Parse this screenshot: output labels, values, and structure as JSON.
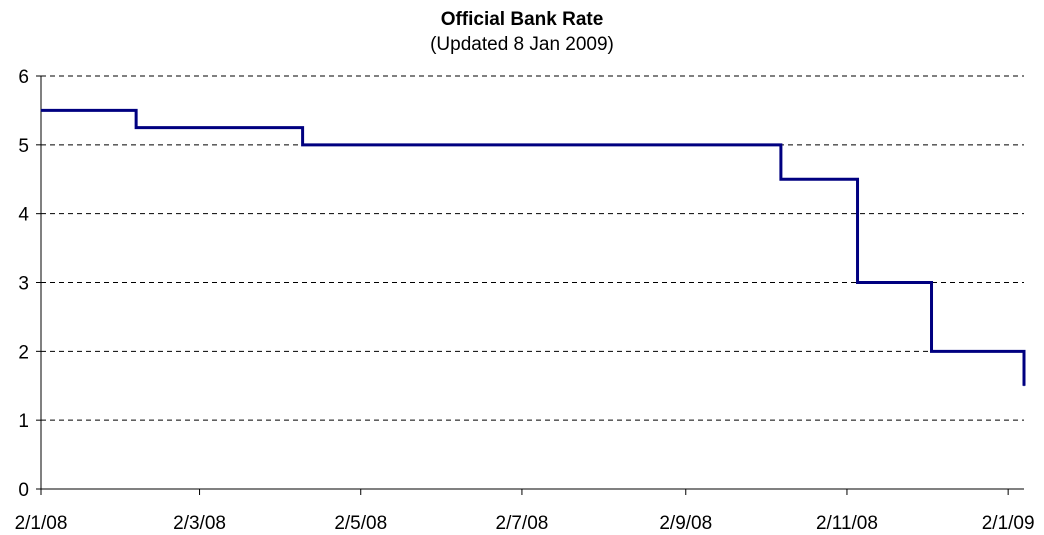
{
  "chart_data": {
    "type": "line",
    "title": "Official Bank Rate",
    "subtitle": "(Updated 8 Jan 2009)",
    "xlabel": "",
    "ylabel": "",
    "ylim": [
      0,
      6
    ],
    "yticks": [
      "0",
      "1",
      "2",
      "3",
      "4",
      "5",
      "6"
    ],
    "xlim": [
      "2008-01-02",
      "2009-01-08"
    ],
    "xticks": [
      {
        "date": "2008-01-02",
        "label": "2/1/08"
      },
      {
        "date": "2008-03-02",
        "label": "2/3/08"
      },
      {
        "date": "2008-05-02",
        "label": "2/5/08"
      },
      {
        "date": "2008-07-02",
        "label": "2/7/08"
      },
      {
        "date": "2008-09-02",
        "label": "2/9/08"
      },
      {
        "date": "2008-11-02",
        "label": "2/11/08"
      },
      {
        "date": "2009-01-02",
        "label": "2/1/09"
      }
    ],
    "grid": {
      "horizontal": true,
      "style": "dashed"
    },
    "legend": "none",
    "series": [
      {
        "color": "#000080",
        "step": true,
        "points": [
          {
            "x": "2008-01-02",
            "y": 5.5
          },
          {
            "x": "2008-02-07",
            "y": 5.25
          },
          {
            "x": "2008-04-10",
            "y": 5.0
          },
          {
            "x": "2008-10-08",
            "y": 4.5
          },
          {
            "x": "2008-11-06",
            "y": 3.0
          },
          {
            "x": "2008-12-04",
            "y": 2.0
          },
          {
            "x": "2009-01-08",
            "y": 1.5
          }
        ]
      }
    ]
  }
}
